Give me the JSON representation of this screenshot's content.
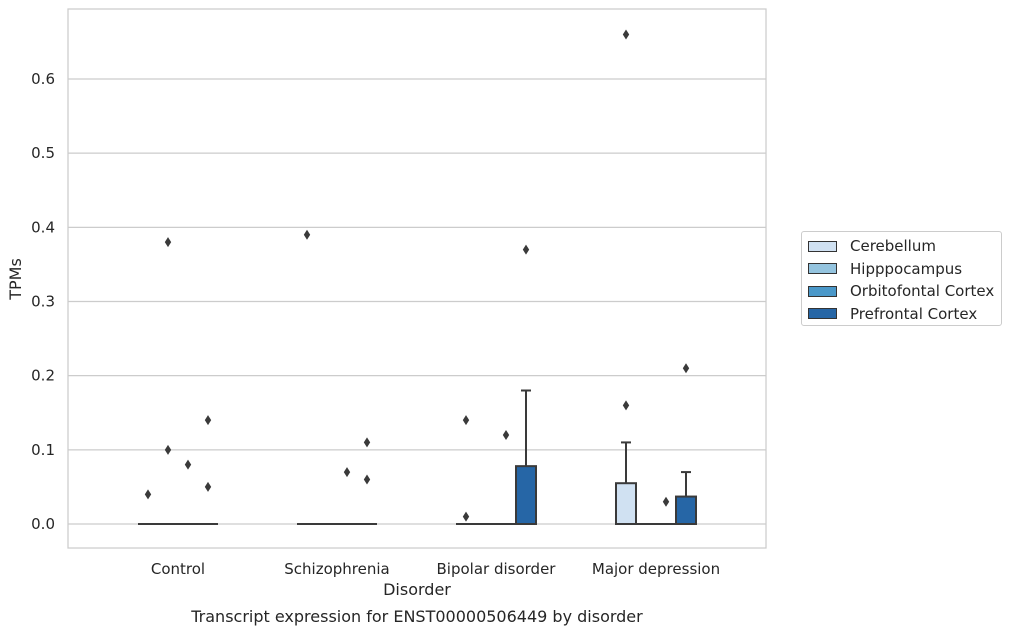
{
  "chart_data": {
    "type": "box",
    "xlabel": "Disorder",
    "ylabel": "TPMs",
    "caption": "Transcript expression for ENST00000506449 by disorder",
    "ylim": [
      -0.032,
      0.695
    ],
    "yticks": [
      "0.0",
      "0.1",
      "0.2",
      "0.3",
      "0.4",
      "0.5",
      "0.6"
    ],
    "grid": "horizontal",
    "legend_position": "right",
    "categories": [
      "Control",
      "Schizophrenia",
      "Bipolar disorder",
      "Major depression"
    ],
    "series": [
      {
        "name": "Cerebellum",
        "color": "#d0e1f2",
        "boxes": [
          {
            "q1": 0,
            "median": 0,
            "q3": 0,
            "whisker_high": 0,
            "outliers": [
              0.04
            ]
          },
          {
            "q1": 0,
            "median": 0,
            "q3": 0,
            "whisker_high": 0,
            "outliers": [
              0.39
            ]
          },
          {
            "q1": 0,
            "median": 0,
            "q3": 0,
            "whisker_high": 0,
            "outliers": [
              0.14,
              0.01
            ]
          },
          {
            "q1": 0,
            "median": 0,
            "q3": 0.055,
            "whisker_high": 0.11,
            "outliers": [
              0.66,
              0.16
            ]
          }
        ]
      },
      {
        "name": "Hipppocampus",
        "color": "#94c4df",
        "boxes": [
          {
            "q1": 0,
            "median": 0,
            "q3": 0,
            "whisker_high": 0,
            "outliers": [
              0.38,
              0.1
            ]
          },
          {
            "q1": 0,
            "median": 0,
            "q3": 0,
            "whisker_high": 0,
            "outliers": []
          },
          {
            "q1": 0,
            "median": 0,
            "q3": 0,
            "whisker_high": 0,
            "outliers": []
          },
          {
            "q1": 0,
            "median": 0,
            "q3": 0,
            "whisker_high": 0,
            "outliers": []
          }
        ]
      },
      {
        "name": "Orbitofontal Cortex",
        "color": "#4a98c9",
        "boxes": [
          {
            "q1": 0,
            "median": 0,
            "q3": 0,
            "whisker_high": 0,
            "outliers": [
              0.08
            ]
          },
          {
            "q1": 0,
            "median": 0,
            "q3": 0,
            "whisker_high": 0,
            "outliers": [
              0.07
            ]
          },
          {
            "q1": 0,
            "median": 0,
            "q3": 0,
            "whisker_high": 0,
            "outliers": [
              0.12
            ]
          },
          {
            "q1": 0,
            "median": 0,
            "q3": 0,
            "whisker_high": 0,
            "outliers": [
              0.03
            ]
          }
        ]
      },
      {
        "name": "Prefrontal Cortex",
        "color": "#2666a6",
        "boxes": [
          {
            "q1": 0,
            "median": 0,
            "q3": 0,
            "whisker_high": 0,
            "outliers": [
              0.14,
              0.05
            ]
          },
          {
            "q1": 0,
            "median": 0,
            "q3": 0,
            "whisker_high": 0,
            "outliers": [
              0.11,
              0.06
            ]
          },
          {
            "q1": 0,
            "median": 0,
            "q3": 0.078,
            "whisker_high": 0.18,
            "outliers": [
              0.37
            ]
          },
          {
            "q1": 0,
            "median": 0,
            "q3": 0.037,
            "whisker_high": 0.07,
            "outliers": [
              0.21
            ]
          }
        ]
      }
    ]
  }
}
